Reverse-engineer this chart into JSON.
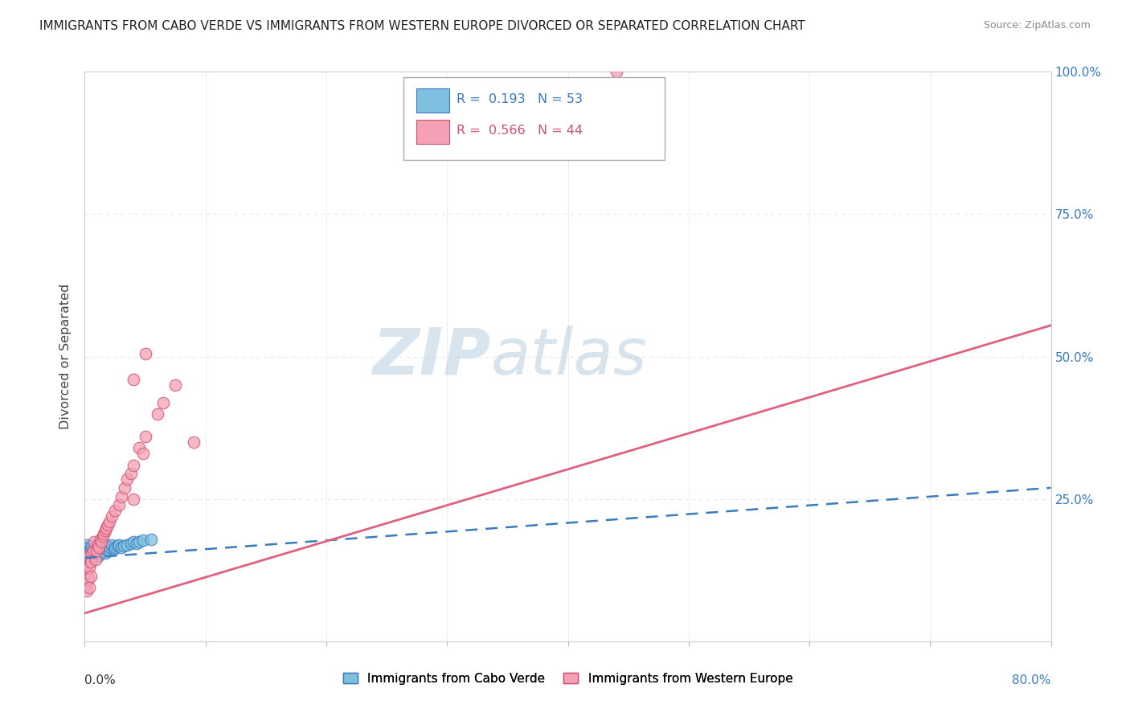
{
  "title": "IMMIGRANTS FROM CABO VERDE VS IMMIGRANTS FROM WESTERN EUROPE DIVORCED OR SEPARATED CORRELATION CHART",
  "source": "Source: ZipAtlas.com",
  "ylabel": "Divorced or Separated",
  "color_blue": "#7fbfdf",
  "color_blue_edge": "#3a7abf",
  "color_pink": "#f4a0b5",
  "color_pink_edge": "#d05070",
  "color_blue_line": "#3a7abf",
  "color_pink_line": "#e06080",
  "watermark_color": "#c5d8ea",
  "background_color": "#ffffff",
  "gridline_color": "#e8e8e8",
  "cabo_verde_x": [
    0.001,
    0.001,
    0.001,
    0.002,
    0.002,
    0.002,
    0.002,
    0.003,
    0.003,
    0.003,
    0.003,
    0.004,
    0.004,
    0.004,
    0.005,
    0.005,
    0.005,
    0.006,
    0.006,
    0.007,
    0.007,
    0.008,
    0.008,
    0.009,
    0.009,
    0.01,
    0.01,
    0.011,
    0.012,
    0.012,
    0.013,
    0.014,
    0.015,
    0.016,
    0.017,
    0.018,
    0.019,
    0.02,
    0.021,
    0.022,
    0.024,
    0.025,
    0.027,
    0.028,
    0.03,
    0.032,
    0.035,
    0.038,
    0.04,
    0.043,
    0.045,
    0.048,
    0.055
  ],
  "cabo_verde_y": [
    0.155,
    0.16,
    0.15,
    0.158,
    0.148,
    0.162,
    0.17,
    0.155,
    0.145,
    0.165,
    0.152,
    0.16,
    0.148,
    0.157,
    0.155,
    0.163,
    0.145,
    0.152,
    0.168,
    0.155,
    0.16,
    0.148,
    0.162,
    0.155,
    0.165,
    0.158,
    0.162,
    0.15,
    0.16,
    0.168,
    0.155,
    0.162,
    0.158,
    0.165,
    0.155,
    0.162,
    0.168,
    0.16,
    0.165,
    0.17,
    0.162,
    0.165,
    0.168,
    0.17,
    0.165,
    0.168,
    0.17,
    0.172,
    0.175,
    0.172,
    0.175,
    0.178,
    0.18
  ],
  "western_europe_x": [
    0.001,
    0.001,
    0.002,
    0.002,
    0.003,
    0.003,
    0.004,
    0.004,
    0.005,
    0.005,
    0.006,
    0.007,
    0.008,
    0.009,
    0.01,
    0.011,
    0.012,
    0.013,
    0.014,
    0.015,
    0.016,
    0.017,
    0.018,
    0.019,
    0.02,
    0.022,
    0.025,
    0.028,
    0.03,
    0.033,
    0.035,
    0.038,
    0.04,
    0.045,
    0.05,
    0.04,
    0.048,
    0.06,
    0.065,
    0.075,
    0.09,
    0.04,
    0.05,
    0.44
  ],
  "western_europe_y": [
    0.13,
    0.1,
    0.12,
    0.09,
    0.15,
    0.11,
    0.13,
    0.095,
    0.14,
    0.115,
    0.155,
    0.16,
    0.175,
    0.145,
    0.16,
    0.17,
    0.165,
    0.18,
    0.175,
    0.185,
    0.19,
    0.195,
    0.2,
    0.205,
    0.21,
    0.22,
    0.23,
    0.24,
    0.255,
    0.27,
    0.285,
    0.295,
    0.31,
    0.34,
    0.36,
    0.25,
    0.33,
    0.4,
    0.42,
    0.45,
    0.35,
    0.46,
    0.505,
    1.0
  ],
  "cv_trend_x0": 0.0,
  "cv_trend_x1": 0.8,
  "cv_trend_y0": 0.147,
  "cv_trend_y1": 0.27,
  "we_trend_x0": 0.0,
  "we_trend_x1": 0.8,
  "we_trend_y0": 0.05,
  "we_trend_y1": 0.555,
  "xmin": 0.0,
  "xmax": 0.8,
  "ymin": 0.0,
  "ymax": 1.0,
  "right_ytick_vals": [
    0.25,
    0.5,
    0.75,
    1.0
  ],
  "right_ytick_labels": [
    "25.0%",
    "50.0%",
    "75.0%",
    "100.0%"
  ]
}
